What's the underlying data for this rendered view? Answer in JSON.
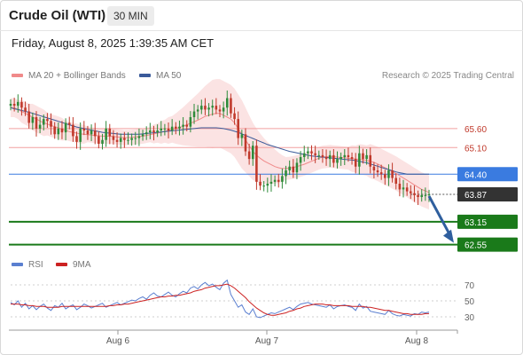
{
  "header": {
    "title": "Crude Oil (WTI)",
    "timeframe": "30 MIN",
    "datetime": "Friday, August 8, 2025 1:39:35 AM CET"
  },
  "legend": {
    "ma20_label": "MA 20 + Bollinger Bands",
    "ma50_label": "MA 50",
    "credit": "Research © 2025 Trading Central",
    "rsi_label": "RSI",
    "rsi_ma_label": "9MA"
  },
  "colors": {
    "ma20": "#f08a8a",
    "ma50": "#3a5a9a",
    "bollinger_fill": "#fadada",
    "bull_candle": "#2e8b3a",
    "bear_candle": "#c0392b",
    "pivot_line": "#3a7be0",
    "support_line": "#1a7a1a",
    "resistance_line": "#f2a0a0",
    "current_price_box": "#333333",
    "forecast_arrow": "#2f5f9e",
    "rsi_line": "#5a7fd0",
    "rsi_ma_line": "#cc2222"
  },
  "chart_data": [
    {
      "type": "candlestick",
      "title": "Crude Oil (WTI)",
      "x_ticks": [
        "Aug 6",
        "Aug 7",
        "Aug 8"
      ],
      "y_labels_shown": [
        65.6,
        65.1,
        64.4,
        63.87,
        63.15,
        62.55
      ],
      "levels": [
        {
          "name": "resistance-2",
          "value": 65.6,
          "label": "65.60",
          "kind": "resistance"
        },
        {
          "name": "resistance-1",
          "value": 65.1,
          "label": "65.10",
          "kind": "resistance"
        },
        {
          "name": "pivot",
          "value": 64.4,
          "label": "64.40",
          "kind": "pivot"
        },
        {
          "name": "current-price",
          "value": 63.87,
          "label": "63.87",
          "kind": "last"
        },
        {
          "name": "support-1",
          "value": 63.15,
          "label": "63.15",
          "kind": "support"
        },
        {
          "name": "support-2",
          "value": 62.55,
          "label": "62.55",
          "kind": "support"
        }
      ],
      "ylim": [
        62.4,
        66.6
      ],
      "closes": [
        66.25,
        66.2,
        66.3,
        66.15,
        66.05,
        65.75,
        65.9,
        65.6,
        65.7,
        65.85,
        65.8,
        65.65,
        65.45,
        65.6,
        65.5,
        65.75,
        65.7,
        65.4,
        65.25,
        65.6,
        65.55,
        65.45,
        65.55,
        65.4,
        65.2,
        65.3,
        65.6,
        65.4,
        65.3,
        65.25,
        65.35,
        65.3,
        65.3,
        65.35,
        65.35,
        65.4,
        65.45,
        65.5,
        65.55,
        65.5,
        65.55,
        65.6,
        65.6,
        65.55,
        65.65,
        65.6,
        65.65,
        65.7,
        65.65,
        65.9,
        66.05,
        66.1,
        66.2,
        66.1,
        66.15,
        66.2,
        66.1,
        66.05,
        66.15,
        66.4,
        66.0,
        65.85,
        65.35,
        65.45,
        65.0,
        64.8,
        65.15,
        64.2,
        64.1,
        64.1,
        64.15,
        64.2,
        64.25,
        64.2,
        64.35,
        64.5,
        64.6,
        64.45,
        64.7,
        64.85,
        64.95,
        65.0,
        64.95,
        64.9,
        64.9,
        64.85,
        64.8,
        64.9,
        64.7,
        64.8,
        64.85,
        64.9,
        64.85,
        64.8,
        64.6,
        64.95,
        64.8,
        64.9,
        64.6,
        64.5,
        64.45,
        64.4,
        64.3,
        64.5,
        64.3,
        64.15,
        64.0,
        64.05,
        63.95,
        63.9,
        63.85,
        63.8,
        63.85,
        63.85,
        63.87
      ],
      "ma20": [
        66.15,
        66.15,
        66.1,
        66.05,
        66.0,
        65.95,
        65.9,
        65.85,
        65.8,
        65.75,
        65.72,
        65.68,
        65.65,
        65.62,
        65.58,
        65.55,
        65.52,
        65.5,
        65.48,
        65.46,
        65.45,
        65.44,
        65.43,
        65.42,
        65.41,
        65.4,
        65.4,
        65.4,
        65.39,
        65.38,
        65.37,
        65.36,
        65.36,
        65.37,
        65.38,
        65.39,
        65.4,
        65.42,
        65.44,
        65.46,
        65.48,
        65.5,
        65.53,
        65.55,
        65.58,
        65.6,
        65.63,
        65.66,
        65.7,
        65.74,
        65.78,
        65.82,
        65.87,
        65.92,
        65.95,
        65.98,
        66.0,
        66.0,
        65.95,
        65.9,
        65.85,
        65.75,
        65.6,
        65.45,
        65.3,
        65.15,
        65.0,
        64.9,
        64.82,
        64.75,
        64.7,
        64.65,
        64.6,
        64.57,
        64.55,
        64.55,
        64.56,
        64.58,
        64.6,
        64.63,
        64.66,
        64.7,
        64.74,
        64.78,
        64.82,
        64.85,
        64.86,
        64.87,
        64.86,
        64.85,
        64.84,
        64.83,
        64.82,
        64.81,
        64.8,
        64.79,
        64.78,
        64.76,
        64.74,
        64.71,
        64.67,
        64.62,
        64.57,
        64.52,
        64.47,
        64.42,
        64.36,
        64.3,
        64.24,
        64.18,
        64.12,
        64.06,
        64.0,
        63.96,
        63.92
      ],
      "ma50": [
        66.15,
        66.12,
        66.1,
        66.08,
        66.05,
        66.03,
        66.0,
        65.97,
        65.94,
        65.91,
        65.88,
        65.85,
        65.82,
        65.79,
        65.76,
        65.73,
        65.7,
        65.67,
        65.64,
        65.62,
        65.6,
        65.58,
        65.56,
        65.54,
        65.52,
        65.5,
        65.49,
        65.48,
        65.47,
        65.46,
        65.45,
        65.45,
        65.45,
        65.45,
        65.45,
        65.45,
        65.46,
        65.47,
        65.48,
        65.49,
        65.5,
        65.51,
        65.52,
        65.53,
        65.54,
        65.55,
        65.56,
        65.57,
        65.58,
        65.59,
        65.6,
        65.61,
        65.62,
        65.62,
        65.62,
        65.62,
        65.62,
        65.61,
        65.6,
        65.58,
        65.56,
        65.53,
        65.5,
        65.46,
        65.42,
        65.38,
        65.34,
        65.3,
        65.26,
        65.22,
        65.18,
        65.15,
        65.12,
        65.09,
        65.06,
        65.03,
        65.0,
        64.98,
        64.96,
        64.94,
        64.92,
        64.9,
        64.88,
        64.87,
        64.86,
        64.85,
        64.84,
        64.83,
        64.82,
        64.81,
        64.8,
        64.79,
        64.78,
        64.77,
        64.76,
        64.74,
        64.72,
        64.7,
        64.67,
        64.64,
        64.61,
        64.58,
        64.55,
        64.52,
        64.49,
        64.46,
        64.44,
        64.42,
        64.4,
        64.4,
        64.4,
        64.4,
        64.4,
        64.4,
        64.4
      ],
      "bollinger_width": [
        0.25,
        0.25,
        0.25,
        0.3,
        0.3,
        0.3,
        0.35,
        0.35,
        0.35,
        0.35,
        0.3,
        0.3,
        0.3,
        0.3,
        0.3,
        0.25,
        0.25,
        0.25,
        0.25,
        0.25,
        0.25,
        0.2,
        0.2,
        0.2,
        0.2,
        0.2,
        0.2,
        0.2,
        0.2,
        0.2,
        0.2,
        0.2,
        0.2,
        0.2,
        0.2,
        0.2,
        0.2,
        0.2,
        0.2,
        0.25,
        0.25,
        0.3,
        0.3,
        0.35,
        0.35,
        0.4,
        0.45,
        0.5,
        0.55,
        0.6,
        0.65,
        0.7,
        0.75,
        0.8,
        0.85,
        0.9,
        0.9,
        0.9,
        0.9,
        0.9,
        0.9,
        0.9,
        0.9,
        0.9,
        0.85,
        0.8,
        0.75,
        0.7,
        0.65,
        0.6,
        0.55,
        0.5,
        0.45,
        0.4,
        0.35,
        0.3,
        0.3,
        0.3,
        0.3,
        0.3,
        0.3,
        0.3,
        0.3,
        0.3,
        0.3,
        0.3,
        0.3,
        0.3,
        0.3,
        0.3,
        0.3,
        0.3,
        0.3,
        0.35,
        0.35,
        0.4,
        0.4,
        0.4,
        0.45,
        0.45,
        0.45,
        0.45,
        0.45,
        0.45,
        0.45,
        0.45,
        0.45,
        0.45,
        0.45,
        0.45,
        0.45,
        0.45,
        0.45,
        0.45,
        0.45
      ],
      "forecast": {
        "from": 63.87,
        "to": 62.55
      }
    },
    {
      "type": "line",
      "name": "RSI",
      "y_ticks": [
        70,
        50,
        30
      ],
      "ylim": [
        20,
        80
      ],
      "rsi": [
        48,
        45,
        50,
        42,
        47,
        40,
        44,
        39,
        43,
        46,
        41,
        38,
        44,
        42,
        47,
        40,
        43,
        45,
        39,
        42,
        46,
        44,
        41,
        43,
        45,
        47,
        42,
        44,
        46,
        48,
        45,
        47,
        49,
        51,
        50,
        53,
        55,
        52,
        57,
        60,
        56,
        55,
        58,
        61,
        57,
        55,
        59,
        62,
        60,
        66,
        68,
        65,
        70,
        73,
        69,
        71,
        67,
        64,
        72,
        76,
        58,
        50,
        42,
        45,
        36,
        33,
        40,
        30,
        29,
        31,
        33,
        35,
        34,
        36,
        38,
        40,
        42,
        39,
        43,
        46,
        47,
        48,
        46,
        45,
        44,
        43,
        42,
        45,
        40,
        43,
        44,
        45,
        43,
        42,
        38,
        46,
        41,
        43,
        37,
        36,
        35,
        34,
        33,
        38,
        34,
        32,
        31,
        33,
        32,
        31,
        34,
        33,
        36,
        35,
        36
      ],
      "rsi_ma": [
        46,
        46,
        46,
        45,
        45,
        44,
        44,
        43,
        43,
        43,
        42,
        42,
        42,
        42,
        43,
        43,
        43,
        43,
        43,
        43,
        43,
        43,
        43,
        43,
        43,
        43,
        43,
        44,
        44,
        45,
        45,
        46,
        46,
        47,
        48,
        49,
        50,
        51,
        52,
        53,
        54,
        55,
        55,
        56,
        56,
        57,
        57,
        58,
        59,
        60,
        62,
        63,
        64,
        66,
        67,
        68,
        69,
        69,
        70,
        71,
        69,
        66,
        62,
        58,
        54,
        49,
        45,
        41,
        38,
        35,
        33,
        32,
        32,
        33,
        34,
        35,
        37,
        38,
        40,
        41,
        43,
        44,
        45,
        46,
        46,
        46,
        45,
        45,
        44,
        44,
        44,
        44,
        44,
        43,
        43,
        43,
        43,
        42,
        42,
        41,
        40,
        39,
        38,
        38,
        37,
        36,
        35,
        34,
        34,
        33,
        33,
        33,
        33,
        34,
        34
      ]
    }
  ]
}
